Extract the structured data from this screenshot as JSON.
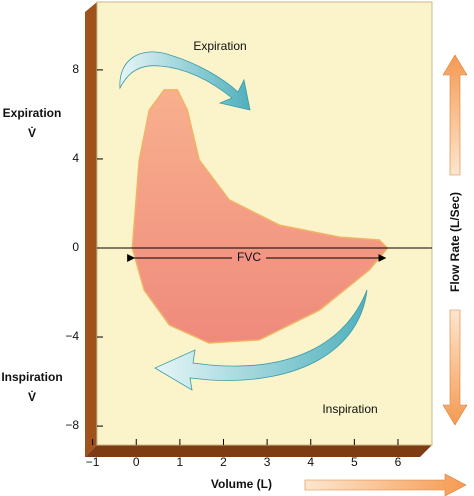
{
  "chart_data": {
    "type": "line",
    "x_label": "Volume (L)",
    "y_label": "Flow Rate (L/Sec)",
    "annotations": {
      "expiration_arrow": "Expiration",
      "inspiration_arrow": "Inspiration",
      "loop_width": "FVC"
    },
    "side_labels": [
      {
        "text": "Expiration",
        "symbol": "V̇"
      },
      {
        "text": "Inspiration",
        "symbol": "V̇"
      }
    ],
    "color": "#f08a78",
    "x": [
      -0.09,
      0.07,
      0.3,
      0.64,
      0.94,
      1.17,
      1.44,
      2.13,
      3.28,
      4.66,
      5.57,
      5.76,
      5.34,
      4.2,
      2.82,
      1.67,
      0.76,
      0.18,
      -0.09
    ],
    "values": [
      0,
      3.96,
      6.2,
      7.1,
      7.1,
      6.2,
      3.96,
      2.16,
      1.03,
      0.49,
      0.36,
      0,
      -0.99,
      -2.79,
      -4.13,
      -4.27,
      -3.46,
      -1.89,
      0
    ],
    "xlim": [
      -0.9,
      6.78
    ],
    "ylim": [
      -8.85,
      11.05
    ],
    "xticks": [
      {
        "value": -1,
        "label": "−1"
      },
      0,
      1,
      2,
      3,
      4,
      5,
      6
    ],
    "yticks": [
      {
        "value": -8,
        "label": "−8"
      },
      {
        "value": -4,
        "label": "−4"
      },
      0,
      4,
      8
    ]
  }
}
